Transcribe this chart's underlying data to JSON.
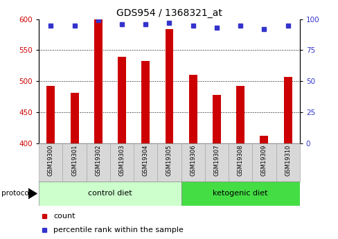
{
  "title": "GDS954 / 1368321_at",
  "samples": [
    "GSM19300",
    "GSM19301",
    "GSM19302",
    "GSM19303",
    "GSM19304",
    "GSM19305",
    "GSM19306",
    "GSM19307",
    "GSM19308",
    "GSM19309",
    "GSM19310"
  ],
  "counts": [
    492,
    481,
    599,
    539,
    533,
    584,
    510,
    478,
    493,
    412,
    507
  ],
  "percentile_ranks": [
    95,
    95,
    99,
    96,
    96,
    97,
    95,
    93,
    95,
    92,
    95
  ],
  "ylim_left": [
    400,
    600
  ],
  "ylim_right": [
    0,
    100
  ],
  "yticks_left": [
    400,
    450,
    500,
    550,
    600
  ],
  "yticks_right": [
    0,
    25,
    50,
    75,
    100
  ],
  "bar_color": "#cc0000",
  "dot_color": "#3333cc",
  "groups": [
    {
      "label": "control diet",
      "indices": [
        0,
        1,
        2,
        3,
        4,
        5
      ],
      "color": "#ccffcc"
    },
    {
      "label": "ketogenic diet",
      "indices": [
        6,
        7,
        8,
        9,
        10
      ],
      "color": "#44dd44"
    }
  ],
  "group_label": "protocol",
  "legend_items": [
    {
      "color": "#cc0000",
      "label": "count"
    },
    {
      "color": "#3333cc",
      "label": "percentile rank within the sample"
    }
  ],
  "tick_label_color_left": "#cc0000",
  "tick_label_color_right": "#3333cc",
  "sample_box_color": "#d8d8d8",
  "sample_box_edge": "#aaaaaa"
}
